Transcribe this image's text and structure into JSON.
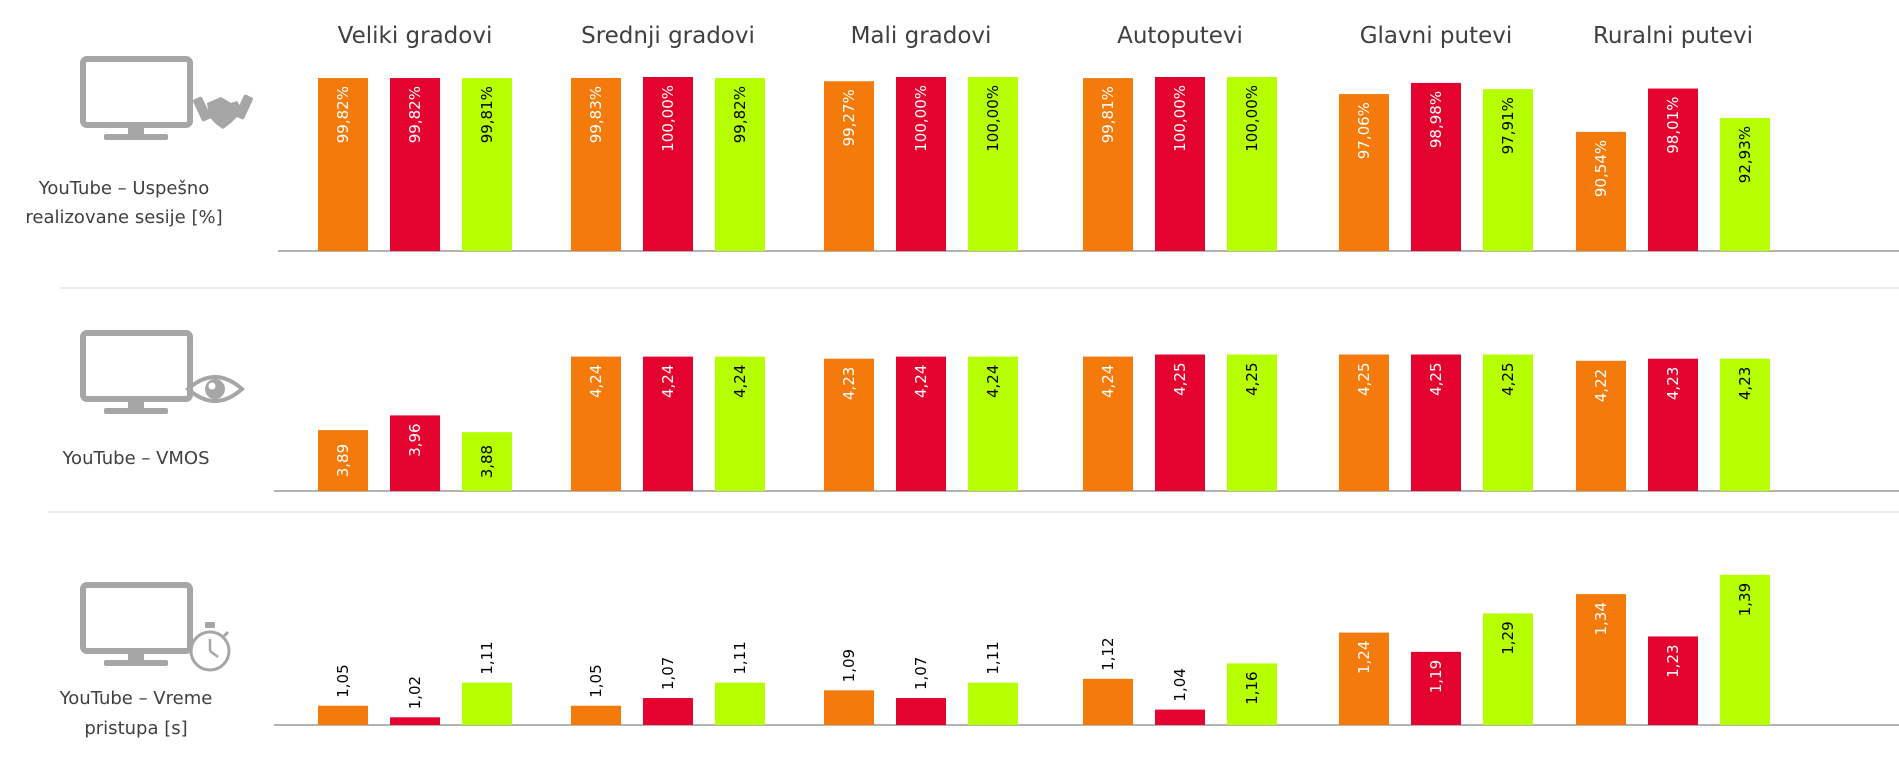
{
  "chart_data": {
    "type": "bar",
    "categories": [
      "Veliki gradovi",
      "Srednji gradovi",
      "Mali gradovi",
      "Autoputevi",
      "Glavni putevi",
      "Ruralni putevi"
    ],
    "series_colors": [
      "#F47B0B",
      "#E3032E",
      "#B5FF00"
    ],
    "panels": [
      {
        "name": "sessions",
        "label_lines": [
          "YouTube – Uspešno",
          "realizovane sesije [%]"
        ],
        "icon": "handshake-icon",
        "ylim": [
          70,
          100
        ],
        "values": [
          [
            99.82,
            99.82,
            99.81
          ],
          [
            99.83,
            100.0,
            99.82
          ],
          [
            99.27,
            100.0,
            100.0
          ],
          [
            99.81,
            100.0,
            100.0
          ],
          [
            97.06,
            98.98,
            97.91
          ],
          [
            90.54,
            98.01,
            92.93
          ]
        ],
        "labels": [
          [
            "99,82%",
            "99,82%",
            "99,81%"
          ],
          [
            "99,83%",
            "100,00%",
            "99,82%"
          ],
          [
            "99,27%",
            "100,00%",
            "100,00%"
          ],
          [
            "99,81%",
            "100,00%",
            "100,00%"
          ],
          [
            "97,06%",
            "98,98%",
            "97,91%"
          ],
          [
            "90,54%",
            "98,01%",
            "92,93%"
          ]
        ]
      },
      {
        "name": "vmos",
        "label_lines": [
          "YouTube – VMOS"
        ],
        "icon": "eye-icon",
        "ylim": [
          3.6,
          4.3
        ],
        "values": [
          [
            3.89,
            3.96,
            3.88
          ],
          [
            4.24,
            4.24,
            4.24
          ],
          [
            4.23,
            4.24,
            4.24
          ],
          [
            4.24,
            4.25,
            4.25
          ],
          [
            4.25,
            4.25,
            4.25
          ],
          [
            4.22,
            4.23,
            4.23
          ]
        ],
        "labels": [
          [
            "3,89",
            "3,96",
            "3,88"
          ],
          [
            "4,24",
            "4,24",
            "4,24"
          ],
          [
            "4,23",
            "4,24",
            "4,24"
          ],
          [
            "4,24",
            "4,25",
            "4,25"
          ],
          [
            "4,25",
            "4,25",
            "4,25"
          ],
          [
            "4,22",
            "4,23",
            "4,23"
          ]
        ]
      },
      {
        "name": "access-time",
        "label_lines": [
          "YouTube – Vreme",
          "pristupa [s]"
        ],
        "icon": "stopwatch-icon",
        "ylim": [
          1.0,
          1.4
        ],
        "values": [
          [
            1.05,
            1.02,
            1.11
          ],
          [
            1.05,
            1.07,
            1.11
          ],
          [
            1.09,
            1.07,
            1.11
          ],
          [
            1.12,
            1.04,
            1.16
          ],
          [
            1.24,
            1.19,
            1.29
          ],
          [
            1.34,
            1.23,
            1.39
          ]
        ],
        "labels": [
          [
            "1,05",
            "1,02",
            "1,11"
          ],
          [
            "1,05",
            "1,07",
            "1,11"
          ],
          [
            "1,09",
            "1,07",
            "1,11"
          ],
          [
            "1,12",
            "1,04",
            "1,16"
          ],
          [
            "1,24",
            "1,19",
            "1,29"
          ],
          [
            "1,34",
            "1,23",
            "1,39"
          ]
        ]
      }
    ]
  }
}
